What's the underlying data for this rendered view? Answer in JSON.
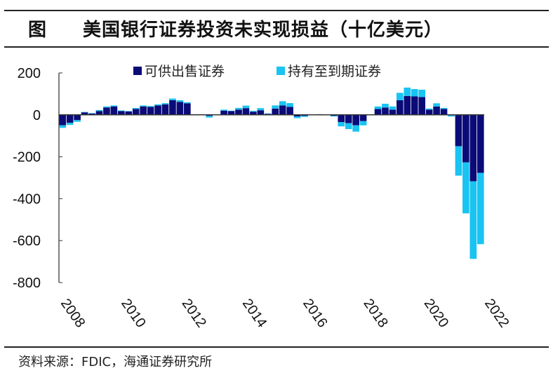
{
  "title": {
    "figure_label": "图",
    "text": "美国银行证券投资未实现损益（十亿美元）"
  },
  "source": "资料来源：FDIC，海通证券研究所",
  "colors": {
    "afs": "#0b0b78",
    "htm": "#19c3f2",
    "axis": "#555555",
    "rule": "#222222"
  },
  "chart_data": {
    "type": "bar",
    "stacked": true,
    "title": "美国银行证券投资未实现损益（十亿美元）",
    "xlabel": "",
    "ylabel": "",
    "ylim": [
      -800,
      200
    ],
    "yticks": [
      200,
      0,
      -200,
      -400,
      -600,
      -800
    ],
    "xtick_labels": [
      "2008",
      "2010",
      "2012",
      "2014",
      "2016",
      "2018",
      "2020",
      "2022"
    ],
    "legend_position": "top",
    "grid": false,
    "series": [
      {
        "name": "可供出售证券",
        "values": [
          -50,
          -38,
          -25,
          12,
          6,
          18,
          35,
          40,
          18,
          16,
          28,
          40,
          38,
          45,
          50,
          70,
          62,
          55,
          3,
          3,
          -5,
          2,
          20,
          18,
          25,
          32,
          15,
          22,
          5,
          30,
          45,
          38,
          -8,
          -5,
          0,
          3,
          0,
          -5,
          -35,
          -40,
          -50,
          -30,
          2,
          28,
          35,
          25,
          70,
          90,
          88,
          85,
          25,
          40,
          28,
          -3,
          -150,
          -227,
          -317,
          -277
        ]
      },
      {
        "name": "持有至到期证券",
        "values": [
          -12,
          -10,
          -8,
          2,
          2,
          5,
          5,
          5,
          3,
          2,
          5,
          5,
          4,
          5,
          6,
          8,
          8,
          5,
          0,
          0,
          -8,
          0,
          5,
          2,
          8,
          12,
          4,
          10,
          2,
          15,
          20,
          18,
          -8,
          -5,
          0,
          0,
          0,
          -3,
          -20,
          -28,
          -30,
          -20,
          0,
          12,
          18,
          15,
          35,
          40,
          35,
          35,
          5,
          15,
          5,
          -5,
          -140,
          -243,
          -370,
          -340
        ]
      }
    ]
  }
}
